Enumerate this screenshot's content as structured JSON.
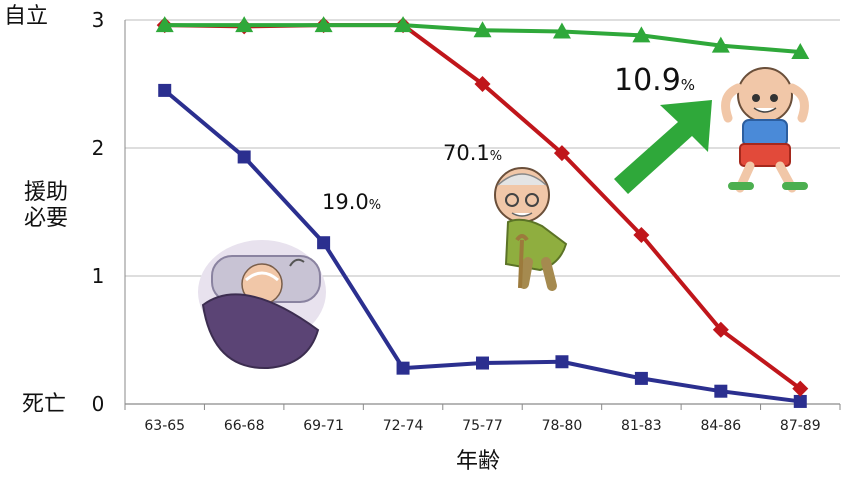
{
  "chart_data": {
    "type": "line",
    "xlabel": "年齢",
    "categories": [
      "63-65",
      "66-68",
      "69-71",
      "72-74",
      "75-77",
      "78-80",
      "81-83",
      "84-86",
      "87-89"
    ],
    "ylim": [
      0,
      3
    ],
    "yticks": [
      "0",
      "1",
      "2",
      "3"
    ],
    "ylabels": {
      "top": "自立",
      "middle_line1": "援助",
      "middle_line2": "必要",
      "bottom": "死亡"
    },
    "grid": true,
    "series": [
      {
        "color": "#2b2f8f",
        "marker": "square",
        "values": [
          2.45,
          1.93,
          1.26,
          0.28,
          0.32,
          0.33,
          0.2,
          0.1,
          0.02
        ]
      },
      {
        "color": "#c0161b",
        "marker": "diamond",
        "values": [
          2.96,
          2.95,
          2.96,
          2.96,
          2.5,
          1.96,
          1.32,
          0.58,
          0.12
        ]
      },
      {
        "color": "#2fa83a",
        "marker": "triangle",
        "values": [
          2.96,
          2.96,
          2.96,
          2.96,
          2.92,
          2.91,
          2.88,
          2.8,
          2.75
        ]
      }
    ],
    "annotations": [
      {
        "value": "19.0",
        "unit": "%"
      },
      {
        "value": "70.1",
        "unit": "%"
      },
      {
        "value": "10.9",
        "unit": "%"
      }
    ]
  },
  "icons": [
    "bedridden-elder-icon",
    "cane-elder-icon",
    "active-elder-icon",
    "up-arrow-icon"
  ]
}
